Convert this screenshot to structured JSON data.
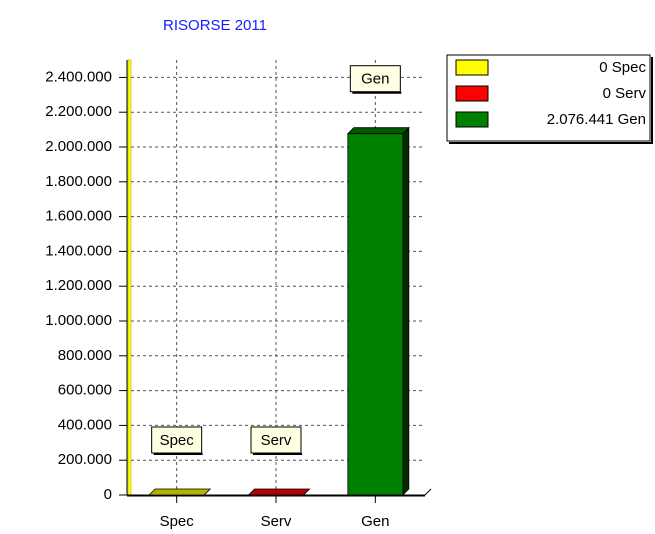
{
  "chart_data": {
    "type": "bar",
    "title": "RISORSE 2011",
    "categories": [
      "Spec",
      "Serv",
      "Gen"
    ],
    "series": [
      {
        "name": "Risorse",
        "colors": [
          "#ffff00",
          "#ff0000",
          "#008000"
        ],
        "values": [
          0,
          0,
          2076441
        ],
        "value_labels": [
          "0",
          "0",
          "2.076.441"
        ]
      }
    ],
    "ylim": [
      0,
      2500000
    ],
    "yticks": [
      0,
      {
        "value": 200000,
        "label": "200.000"
      },
      {
        "value": 400000,
        "label": "400.000"
      },
      {
        "value": 600000,
        "label": "600.000"
      },
      {
        "value": 800000,
        "label": "800.000"
      },
      {
        "value": 1000000,
        "label": "1.000.000"
      },
      {
        "value": 1200000,
        "label": "1.200.000"
      },
      {
        "value": 1400000,
        "label": "1.400.000"
      },
      {
        "value": 1600000,
        "label": "1.600.000"
      },
      {
        "value": 1800000,
        "label": "1.800.000"
      },
      {
        "value": 2000000,
        "label": "2.000.000"
      },
      {
        "value": 2200000,
        "label": "2.200.000"
      },
      {
        "value": 2400000,
        "label": "2.400.000"
      }
    ],
    "grid": true,
    "legend": "upper right"
  }
}
